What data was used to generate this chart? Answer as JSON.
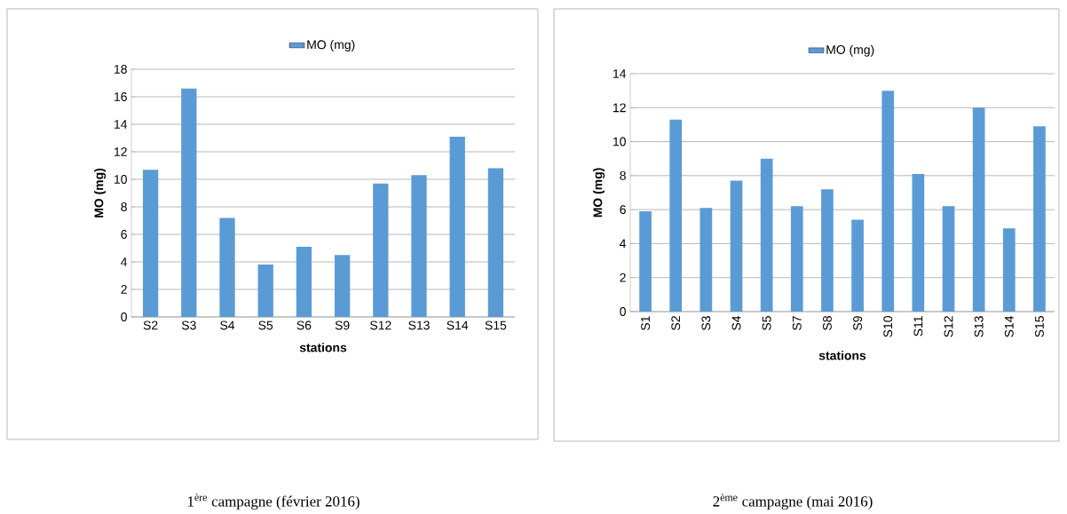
{
  "chart_data": [
    {
      "type": "bar",
      "ylabel": "MO (mg)",
      "xlabel": "stations",
      "categories": [
        "S2",
        "S3",
        "S4",
        "S5",
        "S6",
        "S9",
        "S12",
        "S13",
        "S14",
        "S15"
      ],
      "series": [
        {
          "name": "MO (mg)",
          "color": "#5b9bd5",
          "values": [
            10.7,
            16.6,
            7.2,
            3.8,
            5.1,
            4.5,
            9.7,
            10.3,
            13.1,
            10.8
          ]
        }
      ],
      "ylim": [
        0,
        18
      ],
      "yticks": [
        0,
        2,
        4,
        6,
        8,
        10,
        12,
        14,
        16,
        18
      ],
      "grid": "y",
      "legend": "top",
      "annotations": [
        "1$^{ère}$ campagne (février 2016)"
      ]
    },
    {
      "type": "bar",
      "ylabel": "MO (mg)",
      "xlabel": "stations",
      "categories": [
        "S1",
        "S2",
        "S3",
        "S4",
        "S5",
        "S7",
        "S8",
        "S9",
        "S10",
        "S11",
        "S12",
        "S13",
        "S14",
        "S15"
      ],
      "series": [
        {
          "name": "MO (mg)",
          "color": "#5b9bd5",
          "values": [
            5.9,
            11.3,
            6.1,
            7.7,
            9.0,
            6.2,
            7.2,
            5.4,
            13.0,
            8.1,
            6.2,
            12.0,
            4.9,
            10.9
          ]
        }
      ],
      "ylim": [
        0,
        14
      ],
      "yticks": [
        0,
        2,
        4,
        6,
        8,
        10,
        12,
        14
      ],
      "grid": "y",
      "legend": "top",
      "annotations": [
        "2$^{ème}$ campagne (mai 2016)"
      ]
    }
  ]
}
